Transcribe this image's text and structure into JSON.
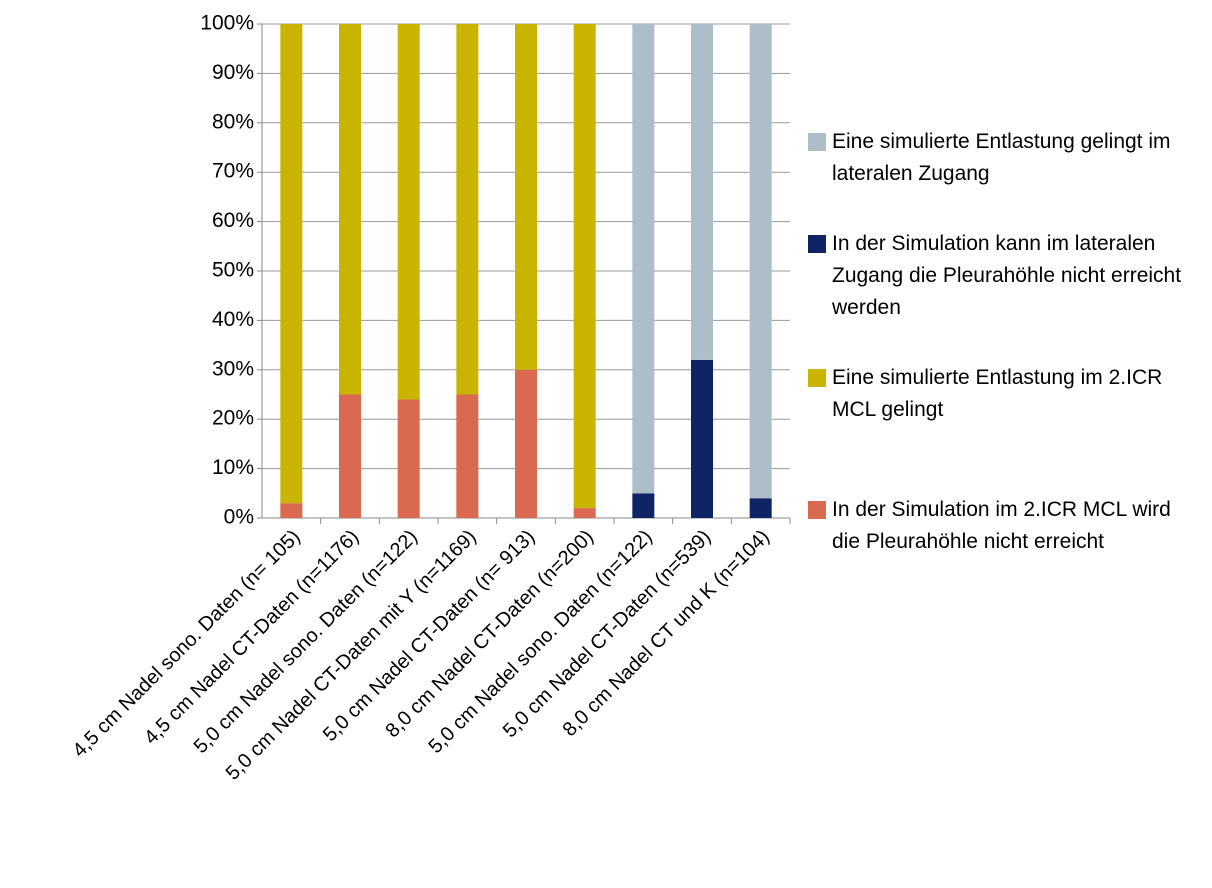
{
  "chart_data": {
    "type": "stacked-bar",
    "categories": [
      "4,5 cm Nadel sono. Daten (n= 105)",
      "4,5 cm Nadel CT-Daten (n=1176)",
      "5,0 cm Nadel sono. Daten (n=122)",
      "5,0 cm Nadel CT-Daten mit Y (n=1169)",
      "5,0 cm Nadel CT-Daten (n= 913)",
      "8,0 cm Nadel CT-Daten (n=200)",
      "5,0 cm Nadel sono. Daten (n=122)",
      "5,0 cm Nadel CT-Daten (n=539)",
      "8,0 cm Nadel CT und K (n=104)"
    ],
    "series": [
      {
        "name": "In der Simulation im 2.ICR MCL wird die Pleurahöhle nicht erreicht",
        "color": "#d9694f",
        "values": [
          3,
          25,
          24,
          25,
          30,
          2,
          null,
          null,
          null
        ]
      },
      {
        "name": "Eine simulierte Entlastung im 2.ICR MCL gelingt",
        "color": "#c9b400",
        "values": [
          97,
          75,
          76,
          75,
          70,
          98,
          null,
          null,
          null
        ]
      },
      {
        "name": "In der Simulation kann im lateralen Zugang die Pleurahöhle nicht erreicht werden",
        "color": "#0e2464",
        "values": [
          null,
          null,
          null,
          null,
          null,
          null,
          5,
          32,
          4
        ]
      },
      {
        "name": "Eine simulierte Entlastung gelingt im lateralen Zugang",
        "color": "#adbec9",
        "values": [
          null,
          null,
          null,
          null,
          null,
          null,
          95,
          68,
          96
        ]
      }
    ],
    "ylim": [
      0,
      100
    ],
    "yticks": [
      {
        "value": 0,
        "label": "0%"
      },
      {
        "value": 10,
        "label": "10%"
      },
      {
        "value": 20,
        "label": "20%"
      },
      {
        "value": 30,
        "label": "30%"
      },
      {
        "value": 40,
        "label": "40%"
      },
      {
        "value": 50,
        "label": "50%"
      },
      {
        "value": 60,
        "label": "60%"
      },
      {
        "value": 70,
        "label": "70%"
      },
      {
        "value": 80,
        "label": "80%"
      },
      {
        "value": 90,
        "label": "90%"
      },
      {
        "value": 100,
        "label": "100%"
      }
    ],
    "grid": true,
    "legend": "right"
  }
}
